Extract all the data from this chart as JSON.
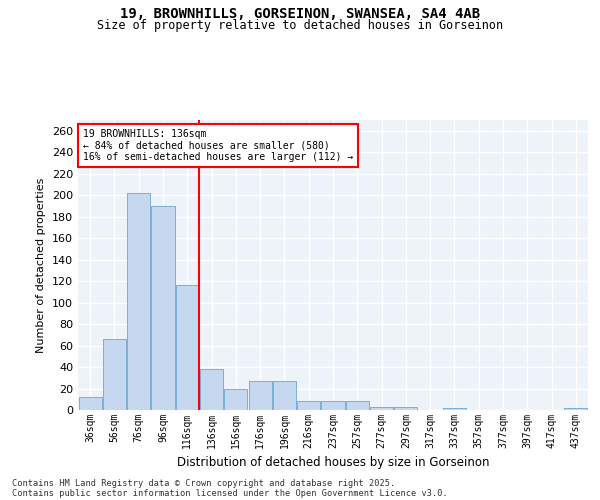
{
  "title_line1": "19, BROWNHILLS, GORSEINON, SWANSEA, SA4 4AB",
  "title_line2": "Size of property relative to detached houses in Gorseinon",
  "xlabel": "Distribution of detached houses by size in Gorseinon",
  "ylabel": "Number of detached properties",
  "categories": [
    "36sqm",
    "56sqm",
    "76sqm",
    "96sqm",
    "116sqm",
    "136sqm",
    "156sqm",
    "176sqm",
    "196sqm",
    "216sqm",
    "237sqm",
    "257sqm",
    "277sqm",
    "297sqm",
    "317sqm",
    "337sqm",
    "357sqm",
    "377sqm",
    "397sqm",
    "417sqm",
    "437sqm"
  ],
  "values": [
    12,
    66,
    202,
    190,
    116,
    38,
    20,
    27,
    27,
    8,
    8,
    8,
    3,
    3,
    0,
    2,
    0,
    0,
    0,
    0,
    2
  ],
  "bar_color": "#c5d8f0",
  "bar_edge_color": "#7bafd4",
  "vline_x_index": 5,
  "vline_color": "red",
  "annotation_title": "19 BROWNHILLS: 136sqm",
  "annotation_line1": "← 84% of detached houses are smaller (580)",
  "annotation_line2": "16% of semi-detached houses are larger (112) →",
  "annotation_box_color": "red",
  "ylim": [
    0,
    270
  ],
  "yticks": [
    0,
    20,
    40,
    60,
    80,
    100,
    120,
    140,
    160,
    180,
    200,
    220,
    240,
    260
  ],
  "bg_color": "#eef2f9",
  "grid_color": "white",
  "footer_line1": "Contains HM Land Registry data © Crown copyright and database right 2025.",
  "footer_line2": "Contains public sector information licensed under the Open Government Licence v3.0."
}
